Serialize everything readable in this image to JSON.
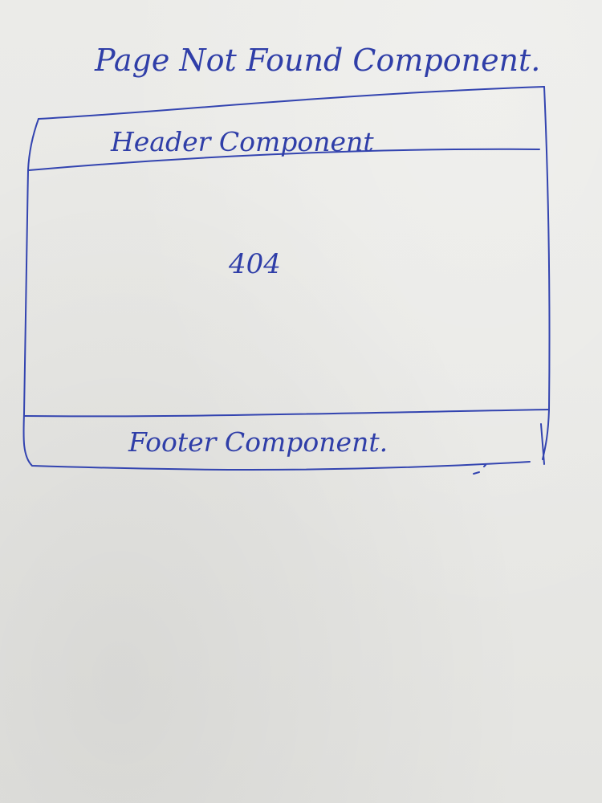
{
  "title": "Page Not Found Component.",
  "wireframe": {
    "header_label": "Header Component",
    "body_text": "404",
    "footer_label": "Footer Component."
  },
  "ink_color": "#3344b0"
}
